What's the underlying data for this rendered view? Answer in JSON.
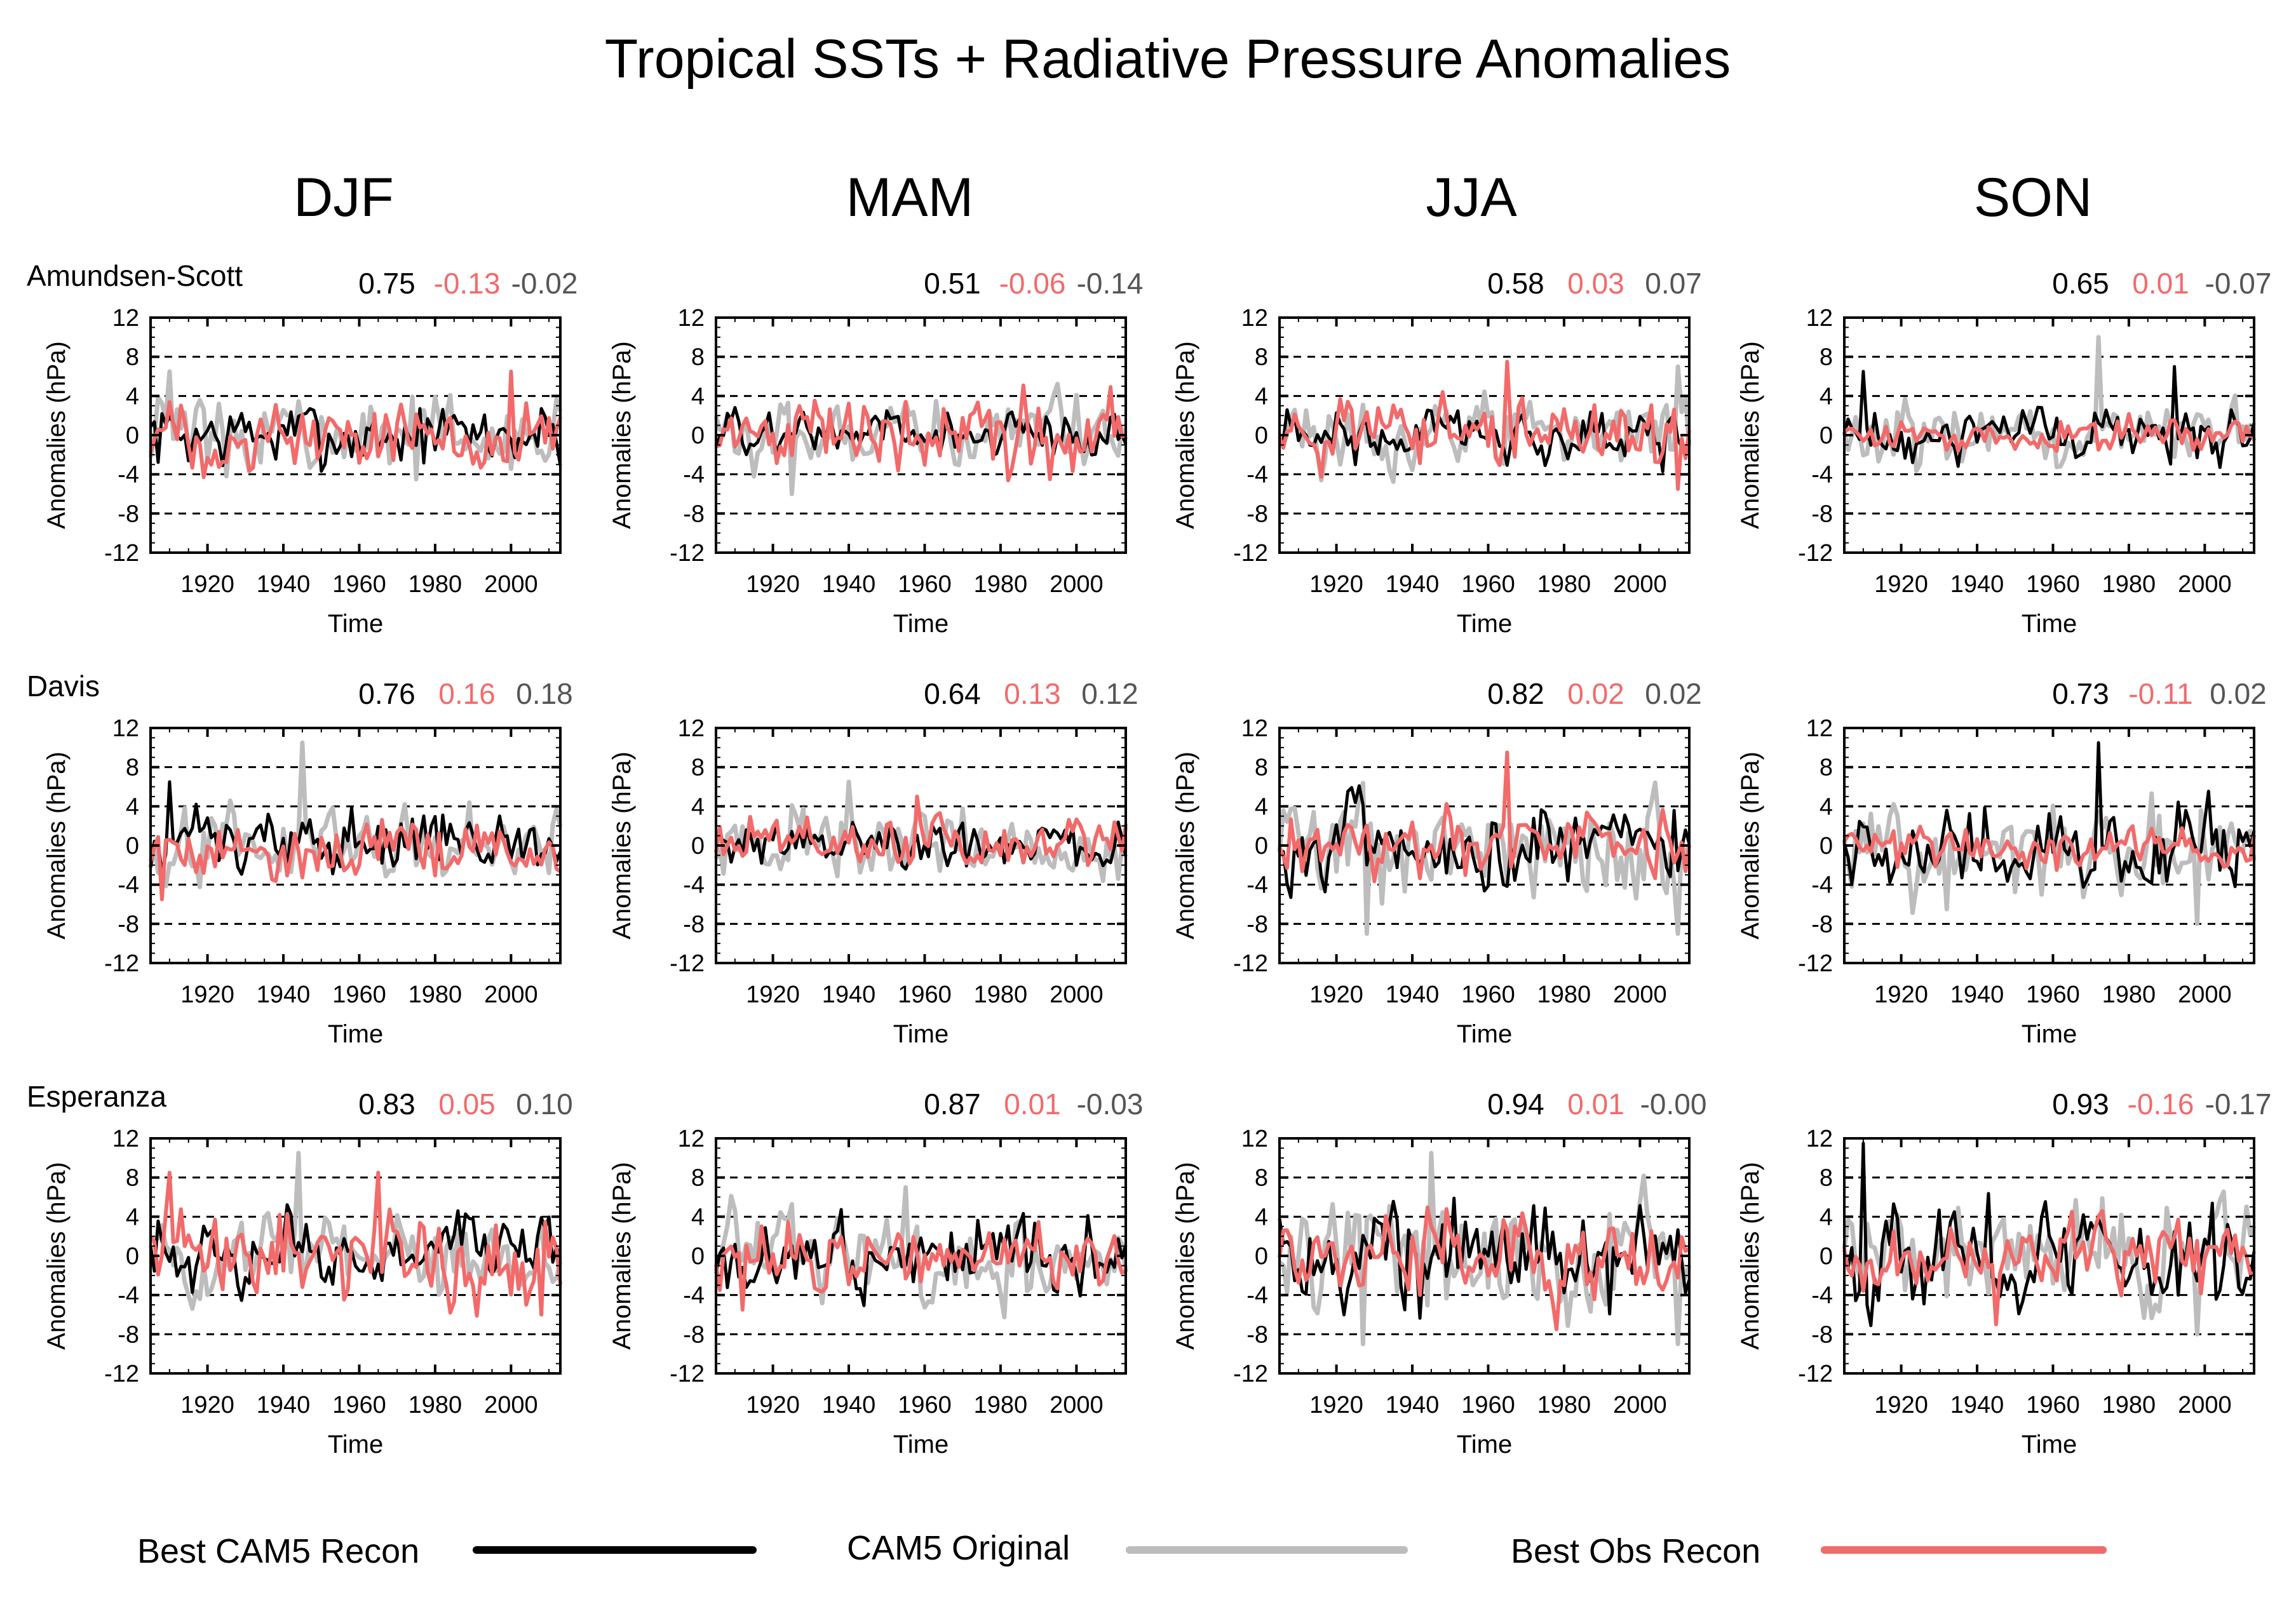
{
  "colors": {
    "recon": "#000000",
    "original": "#bdbdbd",
    "obs": "#f26a6a",
    "corr_original": "#555555"
  },
  "chart_data": {
    "type": "line",
    "title": "Tropical SSTs + Radiative Pressure Anomalies",
    "columns": [
      "DJF",
      "MAM",
      "JJA",
      "SON"
    ],
    "rows": [
      "Amundsen-Scott",
      "Davis",
      "Esperanza"
    ],
    "xlabel": "Time",
    "ylabel": "Anomalies (hPa)",
    "xlim": [
      1905,
      2013
    ],
    "ylim": [
      -12,
      12
    ],
    "x_ticks": [
      "1920",
      "1940",
      "1960",
      "1980",
      "2000"
    ],
    "y_ticks": [
      "-12",
      "-8",
      "-4",
      "0",
      "4",
      "8",
      "12"
    ],
    "reference_lines_y": [
      -8,
      -4,
      4,
      8
    ],
    "series_names": [
      "Best CAM5 Recon",
      "CAM5 Original",
      "Best Obs Recon"
    ],
    "panels": [
      {
        "row": 0,
        "col": 0,
        "corr": [
          "0.75",
          "-0.13",
          "-0.02"
        ],
        "amp": [
          2.0,
          2.2,
          2.0
        ],
        "peaks": [
          [
            1910,
            6.5,
            1
          ],
          [
            1975,
            -4.5,
            1
          ],
          [
            2000,
            6.5,
            2
          ]
        ]
      },
      {
        "row": 0,
        "col": 1,
        "corr": [
          "0.51",
          "-0.06",
          "-0.14"
        ],
        "amp": [
          1.4,
          2.0,
          2.3
        ],
        "peaks": [
          [
            1925,
            -6,
            1
          ],
          [
            1993,
            -4.5,
            2
          ]
        ]
      },
      {
        "row": 0,
        "col": 2,
        "corr": [
          "0.58",
          "0.03",
          "0.07"
        ],
        "amp": [
          1.7,
          2.0,
          1.9
        ],
        "peaks": [
          [
            1965,
            7.5,
            2
          ],
          [
            2010,
            -5.5,
            2
          ],
          [
            2010,
            7,
            1
          ]
        ]
      },
      {
        "row": 0,
        "col": 3,
        "corr": [
          "0.65",
          "0.01",
          "-0.07"
        ],
        "amp": [
          1.6,
          2.0,
          0.9
        ],
        "peaks": [
          [
            1910,
            6.5,
            0
          ],
          [
            1972,
            10,
            1
          ],
          [
            1992,
            7,
            0
          ]
        ]
      },
      {
        "row": 1,
        "col": 0,
        "corr": [
          "0.76",
          "0.16",
          "0.18"
        ],
        "amp": [
          1.9,
          2.2,
          1.8
        ],
        "peaks": [
          [
            1945,
            10.5,
            1
          ],
          [
            1910,
            6.5,
            0
          ],
          [
            1908,
            -5.5,
            2
          ]
        ]
      },
      {
        "row": 1,
        "col": 1,
        "corr": [
          "0.64",
          "0.13",
          "0.12"
        ],
        "amp": [
          1.5,
          2.2,
          1.5
        ],
        "peaks": [
          [
            1958,
            5,
            2
          ],
          [
            1940,
            6.5,
            1
          ]
        ]
      },
      {
        "row": 1,
        "col": 2,
        "corr": [
          "0.82",
          "0.02",
          "0.02"
        ],
        "amp": [
          2.6,
          3.0,
          1.9
        ],
        "peaks": [
          [
            1965,
            9.5,
            2
          ],
          [
            1928,
            -9,
            1
          ],
          [
            2010,
            -9,
            1
          ]
        ]
      },
      {
        "row": 1,
        "col": 3,
        "corr": [
          "0.73",
          "-0.11",
          "0.02"
        ],
        "amp": [
          2.5,
          3.0,
          1.3
        ],
        "peaks": [
          [
            1972,
            10.5,
            0
          ],
          [
            1932,
            -6.5,
            1
          ],
          [
            1998,
            -8,
            1
          ]
        ]
      },
      {
        "row": 2,
        "col": 0,
        "corr": [
          "0.83",
          "0.05",
          "0.10"
        ],
        "amp": [
          2.2,
          2.5,
          2.6
        ],
        "peaks": [
          [
            1944,
            10.5,
            1
          ],
          [
            1910,
            8.5,
            2
          ],
          [
            1965,
            8.5,
            2
          ],
          [
            2008,
            -6,
            2
          ]
        ]
      },
      {
        "row": 2,
        "col": 1,
        "corr": [
          "0.87",
          "0.01",
          "-0.03"
        ],
        "amp": [
          2.4,
          2.6,
          1.9
        ],
        "peaks": [
          [
            1912,
            -5.5,
            2
          ],
          [
            1955,
            7,
            1
          ]
        ]
      },
      {
        "row": 2,
        "col": 2,
        "corr": [
          "0.94",
          "0.01",
          "-0.00"
        ],
        "amp": [
          3.0,
          3.2,
          2.3
        ],
        "peaks": [
          [
            1927,
            -9,
            1
          ],
          [
            1945,
            10.5,
            1
          ],
          [
            2010,
            -9,
            1
          ],
          [
            1978,
            -7.5,
            2
          ]
        ]
      },
      {
        "row": 2,
        "col": 3,
        "corr": [
          "0.93",
          "-0.16",
          "-0.17"
        ],
        "amp": [
          3.4,
          3.4,
          1.9
        ],
        "peaks": [
          [
            1910,
            11.5,
            0
          ],
          [
            1945,
            -7,
            2
          ],
          [
            1998,
            -8,
            1
          ]
        ]
      }
    ]
  }
}
